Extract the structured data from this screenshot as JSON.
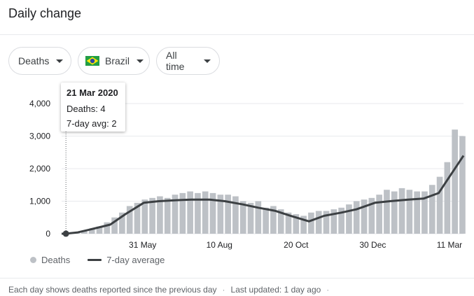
{
  "header": {
    "title": "Daily change"
  },
  "filters": {
    "metric": "Deaths",
    "country": "Brazil",
    "range": "All time"
  },
  "tooltip": {
    "date": "21 Mar 2020",
    "deaths": "Deaths: 4",
    "avg": "7-day avg: 2"
  },
  "legend": {
    "bars": "Deaths",
    "line": "7-day average"
  },
  "footer": {
    "note": "Each day shows deaths reported since the previous day",
    "sep": "·",
    "updated": "Last updated: 1 day ago",
    "sep2": "·"
  },
  "colors": {
    "bars": "#bdc1c6",
    "line": "#3c4043",
    "grid": "#e8eaed"
  },
  "chart_data": {
    "type": "bar",
    "title": "",
    "xlabel": "",
    "ylabel": "",
    "ylim": [
      0,
      4000
    ],
    "yticks": [
      0,
      1000,
      2000,
      3000,
      4000
    ],
    "ytick_labels": [
      "0",
      "1,000",
      "2,000",
      "3,000",
      "4,000"
    ],
    "xticks": [
      {
        "date": "2020-05-31",
        "label": "31 May"
      },
      {
        "date": "2020-08-10",
        "label": "10 Aug"
      },
      {
        "date": "2020-10-20",
        "label": "20 Oct"
      },
      {
        "date": "2020-12-30",
        "label": "30 Dec"
      },
      {
        "date": "2021-03-11",
        "label": "11 Mar"
      }
    ],
    "x_range": [
      "2020-03-17",
      "2021-03-24"
    ],
    "hover_date": "2020-03-21",
    "series": [
      {
        "name": "Deaths",
        "type": "bar",
        "points": [
          [
            "2020-03-17",
            1
          ],
          [
            "2020-03-24",
            12
          ],
          [
            "2020-03-31",
            40
          ],
          [
            "2020-04-07",
            80
          ],
          [
            "2020-04-14",
            150
          ],
          [
            "2020-04-21",
            220
          ],
          [
            "2020-04-28",
            350
          ],
          [
            "2020-05-05",
            500
          ],
          [
            "2020-05-12",
            650
          ],
          [
            "2020-05-19",
            850
          ],
          [
            "2020-05-26",
            950
          ],
          [
            "2020-06-02",
            1050
          ],
          [
            "2020-06-09",
            1100
          ],
          [
            "2020-06-16",
            1150
          ],
          [
            "2020-06-23",
            1100
          ],
          [
            "2020-06-30",
            1200
          ],
          [
            "2020-07-07",
            1250
          ],
          [
            "2020-07-14",
            1300
          ],
          [
            "2020-07-21",
            1250
          ],
          [
            "2020-07-28",
            1300
          ],
          [
            "2020-08-04",
            1250
          ],
          [
            "2020-08-11",
            1200
          ],
          [
            "2020-08-18",
            1200
          ],
          [
            "2020-08-25",
            1150
          ],
          [
            "2020-09-01",
            1000
          ],
          [
            "2020-09-08",
            950
          ],
          [
            "2020-09-15",
            1000
          ],
          [
            "2020-09-22",
            800
          ],
          [
            "2020-09-29",
            850
          ],
          [
            "2020-10-06",
            750
          ],
          [
            "2020-10-13",
            650
          ],
          [
            "2020-10-20",
            600
          ],
          [
            "2020-10-27",
            550
          ],
          [
            "2020-11-03",
            650
          ],
          [
            "2020-11-10",
            700
          ],
          [
            "2020-11-17",
            700
          ],
          [
            "2020-11-24",
            750
          ],
          [
            "2020-12-01",
            800
          ],
          [
            "2020-12-08",
            900
          ],
          [
            "2020-12-15",
            1000
          ],
          [
            "2020-12-22",
            1050
          ],
          [
            "2020-12-29",
            1100
          ],
          [
            "2021-01-05",
            1200
          ],
          [
            "2021-01-12",
            1350
          ],
          [
            "2021-01-19",
            1300
          ],
          [
            "2021-01-26",
            1400
          ],
          [
            "2021-02-02",
            1350
          ],
          [
            "2021-02-09",
            1300
          ],
          [
            "2021-02-16",
            1300
          ],
          [
            "2021-02-23",
            1500
          ],
          [
            "2021-03-02",
            1750
          ],
          [
            "2021-03-09",
            2200
          ],
          [
            "2021-03-16",
            3200
          ],
          [
            "2021-03-23",
            3000
          ]
        ]
      },
      {
        "name": "7-day average",
        "type": "line",
        "points": [
          [
            "2020-03-17",
            0
          ],
          [
            "2020-03-21",
            2
          ],
          [
            "2020-04-01",
            40
          ],
          [
            "2020-04-15",
            150
          ],
          [
            "2020-05-01",
            280
          ],
          [
            "2020-05-15",
            600
          ],
          [
            "2020-06-01",
            950
          ],
          [
            "2020-06-15",
            1000
          ],
          [
            "2020-07-01",
            1030
          ],
          [
            "2020-07-15",
            1050
          ],
          [
            "2020-08-01",
            1050
          ],
          [
            "2020-08-15",
            1000
          ],
          [
            "2020-09-01",
            900
          ],
          [
            "2020-09-15",
            800
          ],
          [
            "2020-10-01",
            700
          ],
          [
            "2020-10-15",
            550
          ],
          [
            "2020-11-01",
            380
          ],
          [
            "2020-11-15",
            550
          ],
          [
            "2020-12-01",
            650
          ],
          [
            "2020-12-15",
            750
          ],
          [
            "2021-01-01",
            950
          ],
          [
            "2021-01-15",
            1000
          ],
          [
            "2021-02-01",
            1050
          ],
          [
            "2021-02-15",
            1080
          ],
          [
            "2021-03-01",
            1250
          ],
          [
            "2021-03-10",
            1700
          ],
          [
            "2021-03-24",
            2400
          ]
        ]
      }
    ]
  }
}
